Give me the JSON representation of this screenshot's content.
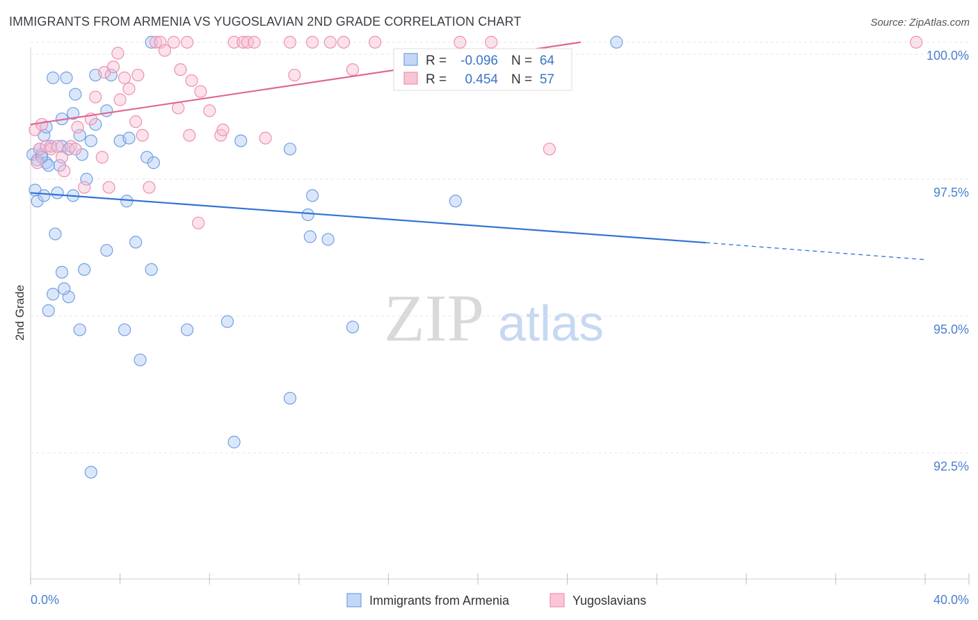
{
  "title": "IMMIGRANTS FROM ARMENIA VS YUGOSLAVIAN 2ND GRADE CORRELATION CHART",
  "source": "Source: ZipAtlas.com",
  "watermark": {
    "zip": "ZIP",
    "atlas": "atlas"
  },
  "colors": {
    "blue": "#6f9fe6",
    "blue_line": "#2f72d6",
    "pink": "#ef8fb0",
    "pink_line": "#e0678f",
    "tick": "#4a7fd0"
  },
  "legend": {
    "items": [
      {
        "label": "Immigrants from Armenia",
        "color": "blue"
      },
      {
        "label": "Yugoslavians",
        "color": "pink"
      }
    ]
  },
  "stats": [
    {
      "r_label": "R =",
      "r_value": "-0.096",
      "n_label": "N =",
      "n_value": "64",
      "color": "blue"
    },
    {
      "r_label": "R =",
      "r_value": "0.454",
      "n_label": "N =",
      "n_value": "57",
      "color": "pink"
    }
  ],
  "chart_data": {
    "type": "scatter",
    "title": "IMMIGRANTS FROM ARMENIA VS YUGOSLAVIAN 2ND GRADE CORRELATION CHART",
    "xlabel": "",
    "ylabel": "2nd Grade",
    "xlim": [
      0,
      40
    ],
    "ylim": [
      90.2,
      100.2
    ],
    "x_tick_labels": [
      "0.0%",
      "40.0%"
    ],
    "y_ticks": [
      92.5,
      95.0,
      97.5,
      100.0
    ],
    "y_tick_labels": [
      "92.5%",
      "95.0%",
      "97.5%",
      "100.0%"
    ],
    "grid": true,
    "legend_position": "bottom-center",
    "series": [
      {
        "name": "Immigrants from Armenia",
        "color": "#6f9fe6",
        "trend": {
          "x": [
            0,
            30.2
          ],
          "y": [
            97.25,
            96.34
          ],
          "dashed_to": [
            40,
            96.03
          ]
        },
        "points": [
          [
            0.1,
            97.95
          ],
          [
            0.2,
            97.3
          ],
          [
            0.3,
            97.85
          ],
          [
            0.3,
            97.1
          ],
          [
            0.4,
            98.05
          ],
          [
            0.5,
            97.95
          ],
          [
            0.6,
            98.3
          ],
          [
            0.6,
            97.2
          ],
          [
            0.7,
            98.45
          ],
          [
            0.7,
            97.8
          ],
          [
            0.8,
            97.75
          ],
          [
            0.9,
            98.1
          ],
          [
            1.0,
            99.35
          ],
          [
            1.1,
            96.5
          ],
          [
            1.2,
            97.25
          ],
          [
            1.3,
            97.75
          ],
          [
            1.4,
            98.6
          ],
          [
            1.4,
            98.1
          ],
          [
            1.6,
            99.35
          ],
          [
            1.7,
            95.35
          ],
          [
            1.9,
            98.7
          ],
          [
            2.0,
            99.05
          ],
          [
            2.2,
            98.3
          ],
          [
            2.3,
            97.95
          ],
          [
            2.5,
            97.5
          ],
          [
            2.7,
            98.2
          ],
          [
            2.9,
            98.5
          ],
          [
            2.9,
            99.4
          ],
          [
            3.4,
            98.75
          ],
          [
            3.6,
            99.4
          ],
          [
            4.0,
            98.2
          ],
          [
            4.4,
            98.25
          ],
          [
            4.7,
            96.35
          ],
          [
            5.2,
            97.9
          ],
          [
            5.5,
            97.8
          ],
          [
            5.4,
            100.0
          ],
          [
            3.4,
            96.2
          ],
          [
            2.4,
            95.85
          ],
          [
            1.4,
            95.8
          ],
          [
            1.0,
            95.4
          ],
          [
            1.5,
            95.5
          ],
          [
            0.8,
            95.1
          ],
          [
            2.2,
            94.75
          ],
          [
            4.2,
            94.75
          ],
          [
            5.4,
            95.85
          ],
          [
            7.0,
            94.75
          ],
          [
            8.8,
            94.9
          ],
          [
            4.9,
            94.2
          ],
          [
            9.4,
            98.2
          ],
          [
            11.6,
            98.05
          ],
          [
            12.4,
            96.85
          ],
          [
            12.5,
            96.45
          ],
          [
            12.6,
            97.2
          ],
          [
            13.3,
            96.4
          ],
          [
            14.4,
            94.8
          ],
          [
            11.6,
            93.5
          ],
          [
            9.1,
            92.7
          ],
          [
            19.0,
            97.1
          ],
          [
            26.2,
            100.0
          ],
          [
            2.7,
            92.15
          ],
          [
            1.9,
            97.2
          ],
          [
            0.5,
            97.9
          ],
          [
            4.3,
            97.1
          ],
          [
            1.7,
            98.05
          ]
        ]
      },
      {
        "name": "Yugoslavians",
        "color": "#ef8fb0",
        "trend": {
          "x": [
            0,
            24.6
          ],
          "y": [
            98.5,
            100.0
          ]
        },
        "points": [
          [
            0.2,
            98.4
          ],
          [
            0.3,
            97.8
          ],
          [
            0.4,
            98.05
          ],
          [
            0.5,
            98.5
          ],
          [
            0.7,
            98.1
          ],
          [
            0.9,
            98.05
          ],
          [
            1.2,
            98.1
          ],
          [
            1.4,
            97.9
          ],
          [
            1.5,
            97.65
          ],
          [
            1.8,
            98.1
          ],
          [
            2.0,
            98.05
          ],
          [
            2.1,
            98.45
          ],
          [
            2.4,
            97.35
          ],
          [
            2.7,
            98.6
          ],
          [
            2.9,
            99.0
          ],
          [
            3.2,
            97.9
          ],
          [
            3.3,
            99.45
          ],
          [
            3.5,
            97.35
          ],
          [
            3.7,
            99.55
          ],
          [
            3.9,
            99.8
          ],
          [
            4.0,
            98.95
          ],
          [
            4.2,
            99.35
          ],
          [
            4.4,
            99.15
          ],
          [
            4.7,
            98.55
          ],
          [
            4.8,
            99.4
          ],
          [
            5.0,
            98.3
          ],
          [
            5.3,
            97.35
          ],
          [
            5.6,
            100.0
          ],
          [
            5.8,
            100.0
          ],
          [
            6.0,
            99.85
          ],
          [
            6.4,
            100.0
          ],
          [
            6.6,
            98.8
          ],
          [
            6.7,
            99.5
          ],
          [
            7.0,
            100.0
          ],
          [
            7.1,
            98.3
          ],
          [
            7.2,
            99.3
          ],
          [
            7.5,
            96.7
          ],
          [
            7.6,
            99.1
          ],
          [
            8.0,
            98.75
          ],
          [
            8.5,
            98.3
          ],
          [
            8.6,
            98.4
          ],
          [
            9.1,
            100.0
          ],
          [
            9.5,
            100.0
          ],
          [
            9.7,
            100.0
          ],
          [
            10.0,
            100.0
          ],
          [
            10.5,
            98.25
          ],
          [
            11.6,
            100.0
          ],
          [
            11.8,
            99.4
          ],
          [
            12.6,
            100.0
          ],
          [
            13.4,
            100.0
          ],
          [
            14.0,
            100.0
          ],
          [
            14.4,
            99.5
          ],
          [
            15.4,
            100.0
          ],
          [
            19.2,
            100.0
          ],
          [
            20.6,
            100.0
          ],
          [
            23.2,
            98.05
          ],
          [
            39.6,
            100.0
          ]
        ]
      }
    ]
  }
}
